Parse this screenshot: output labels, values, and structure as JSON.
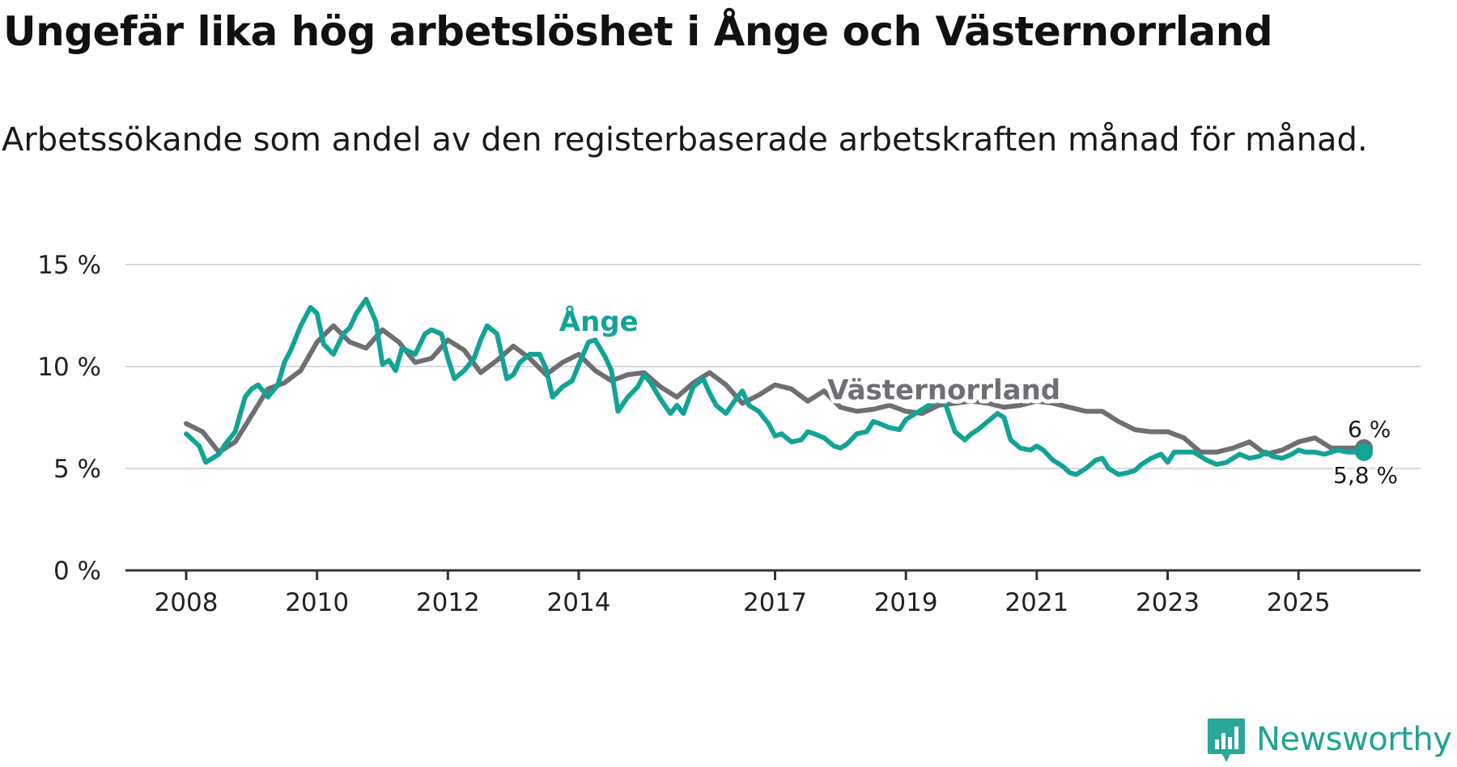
{
  "title": "Ungefär lika hög arbetslöshet i Ånge och Västernorrland",
  "subtitle": "Arbetssökande som andel av den registerbaserade arbetskraften månad för månad.",
  "brand": {
    "name": "Newsworthy",
    "icon": "newsworthy-logo-icon",
    "color": "#2aa897"
  },
  "colors": {
    "ange": "#13a396",
    "vasternorrland": "#6e6e73",
    "grid": "#d9d9d9",
    "axis": "#333333"
  },
  "chart_data": {
    "type": "line",
    "title": "Ungefär lika hög arbetslöshet i Ånge och Västernorrland",
    "xlabel": "",
    "ylabel": "",
    "xlim": [
      2008.0,
      2026.0
    ],
    "ylim": [
      0,
      15
    ],
    "y_ticks": [
      {
        "value": 0,
        "label": "0 %"
      },
      {
        "value": 5,
        "label": "5 %"
      },
      {
        "value": 10,
        "label": "10 %"
      },
      {
        "value": 15,
        "label": "15 %"
      }
    ],
    "x_ticks": [
      {
        "value": 2008,
        "label": "2008"
      },
      {
        "value": 2010,
        "label": "2010"
      },
      {
        "value": 2012,
        "label": "2012"
      },
      {
        "value": 2014,
        "label": "2014"
      },
      {
        "value": 2017,
        "label": "2017"
      },
      {
        "value": 2019,
        "label": "2019"
      },
      {
        "value": 2021,
        "label": "2021"
      },
      {
        "value": 2023,
        "label": "2023"
      },
      {
        "value": 2025,
        "label": "2025"
      }
    ],
    "grid": true,
    "series": [
      {
        "name": "Västernorrland",
        "label": "Västernorrland",
        "end_label": "6 %",
        "x": [
          2008.0,
          2008.25,
          2008.5,
          2008.75,
          2009.0,
          2009.25,
          2009.5,
          2009.75,
          2010.0,
          2010.25,
          2010.5,
          2010.75,
          2011.0,
          2011.25,
          2011.5,
          2011.75,
          2012.0,
          2012.25,
          2012.5,
          2012.75,
          2013.0,
          2013.25,
          2013.5,
          2013.75,
          2014.0,
          2014.25,
          2014.5,
          2014.75,
          2015.0,
          2015.25,
          2015.5,
          2015.75,
          2016.0,
          2016.25,
          2016.5,
          2016.75,
          2017.0,
          2017.25,
          2017.5,
          2017.75,
          2018.0,
          2018.25,
          2018.5,
          2018.75,
          2019.0,
          2019.25,
          2019.5,
          2019.75,
          2020.0,
          2020.25,
          2020.5,
          2020.75,
          2021.0,
          2021.25,
          2021.5,
          2021.75,
          2022.0,
          2022.25,
          2022.5,
          2022.75,
          2023.0,
          2023.25,
          2023.5,
          2023.75,
          2024.0,
          2024.25,
          2024.5,
          2024.75,
          2025.0,
          2025.25,
          2025.5,
          2025.75,
          2026.0
        ],
        "values": [
          7.2,
          6.8,
          5.8,
          6.3,
          7.6,
          8.9,
          9.2,
          9.8,
          11.2,
          12.0,
          11.2,
          10.9,
          11.8,
          11.2,
          10.2,
          10.4,
          11.3,
          10.8,
          9.7,
          10.3,
          11.0,
          10.4,
          9.6,
          10.2,
          10.6,
          9.8,
          9.3,
          9.6,
          9.7,
          9.0,
          8.5,
          9.2,
          9.7,
          9.1,
          8.2,
          8.6,
          9.1,
          8.9,
          8.3,
          8.8,
          8.0,
          7.8,
          7.9,
          8.1,
          7.8,
          7.7,
          8.1,
          8.2,
          8.3,
          8.2,
          8.0,
          8.1,
          8.3,
          8.2,
          8.0,
          7.8,
          7.8,
          7.3,
          6.9,
          6.8,
          6.8,
          6.5,
          5.8,
          5.8,
          6.0,
          6.3,
          5.7,
          5.9,
          6.3,
          6.5,
          6.0,
          6.0,
          6.0
        ]
      },
      {
        "name": "Ånge",
        "label": "Ånge",
        "end_label": "5,8 %",
        "x": [
          2008.0,
          2008.2,
          2008.3,
          2008.4,
          2008.5,
          2008.6,
          2008.75,
          2008.9,
          2009.0,
          2009.1,
          2009.25,
          2009.4,
          2009.5,
          2009.6,
          2009.75,
          2009.9,
          2010.0,
          2010.1,
          2010.25,
          2010.4,
          2010.5,
          2010.6,
          2010.75,
          2010.9,
          2011.0,
          2011.1,
          2011.2,
          2011.3,
          2011.5,
          2011.65,
          2011.75,
          2011.9,
          2012.0,
          2012.1,
          2012.25,
          2012.4,
          2012.5,
          2012.6,
          2012.75,
          2012.9,
          2013.0,
          2013.1,
          2013.25,
          2013.4,
          2013.5,
          2013.6,
          2013.75,
          2013.9,
          2014.0,
          2014.15,
          2014.25,
          2014.4,
          2014.5,
          2014.6,
          2014.75,
          2014.9,
          2015.0,
          2015.1,
          2015.25,
          2015.4,
          2015.5,
          2015.6,
          2015.75,
          2015.9,
          2016.0,
          2016.1,
          2016.25,
          2016.4,
          2016.5,
          2016.6,
          2016.75,
          2016.9,
          2017.0,
          2017.1,
          2017.25,
          2017.4,
          2017.5,
          2017.6,
          2017.75,
          2017.9,
          2018.0,
          2018.1,
          2018.25,
          2018.4,
          2018.5,
          2018.6,
          2018.75,
          2018.9,
          2019.0,
          2019.1,
          2019.25,
          2019.4,
          2019.5,
          2019.6,
          2019.75,
          2019.9,
          2020.0,
          2020.1,
          2020.25,
          2020.4,
          2020.5,
          2020.6,
          2020.75,
          2020.9,
          2021.0,
          2021.1,
          2021.25,
          2021.4,
          2021.5,
          2021.6,
          2021.75,
          2021.9,
          2022.0,
          2022.1,
          2022.25,
          2022.4,
          2022.5,
          2022.6,
          2022.75,
          2022.9,
          2023.0,
          2023.1,
          2023.25,
          2023.4,
          2023.5,
          2023.6,
          2023.75,
          2023.9,
          2024.0,
          2024.1,
          2024.25,
          2024.4,
          2024.5,
          2024.6,
          2024.75,
          2024.9,
          2025.0,
          2025.1,
          2025.25,
          2025.4,
          2025.5,
          2025.6,
          2025.75,
          2025.9,
          2026.0
        ],
        "values": [
          6.7,
          6.1,
          5.3,
          5.5,
          5.7,
          6.2,
          6.8,
          8.5,
          8.9,
          9.1,
          8.5,
          9.1,
          10.2,
          10.8,
          12.0,
          12.9,
          12.6,
          11.1,
          10.6,
          11.6,
          11.9,
          12.6,
          13.3,
          12.2,
          10.1,
          10.3,
          9.8,
          10.9,
          10.6,
          11.6,
          11.8,
          11.6,
          10.4,
          9.4,
          9.8,
          10.4,
          11.3,
          12.0,
          11.6,
          9.4,
          9.6,
          10.2,
          10.6,
          10.6,
          9.9,
          8.5,
          9.0,
          9.3,
          10.1,
          11.2,
          11.3,
          10.5,
          9.8,
          7.8,
          8.5,
          9.0,
          9.6,
          9.2,
          8.4,
          7.7,
          8.1,
          7.7,
          9.0,
          9.4,
          8.7,
          8.1,
          7.7,
          8.4,
          8.8,
          8.1,
          7.8,
          7.2,
          6.6,
          6.7,
          6.3,
          6.4,
          6.8,
          6.7,
          6.5,
          6.1,
          6.0,
          6.2,
          6.7,
          6.8,
          7.3,
          7.2,
          7.0,
          6.9,
          7.4,
          7.6,
          7.9,
          8.2,
          8.4,
          8.2,
          6.8,
          6.4,
          6.7,
          6.9,
          7.3,
          7.7,
          7.5,
          6.4,
          6.0,
          5.9,
          6.1,
          5.9,
          5.4,
          5.1,
          4.8,
          4.7,
          5.0,
          5.4,
          5.5,
          5.0,
          4.7,
          4.8,
          4.9,
          5.2,
          5.5,
          5.7,
          5.3,
          5.8,
          5.8,
          5.8,
          5.6,
          5.4,
          5.2,
          5.3,
          5.5,
          5.7,
          5.5,
          5.6,
          5.8,
          5.6,
          5.5,
          5.7,
          5.9,
          5.8,
          5.8,
          5.7,
          5.8,
          5.9,
          5.8,
          5.8,
          5.8
        ]
      }
    ]
  }
}
